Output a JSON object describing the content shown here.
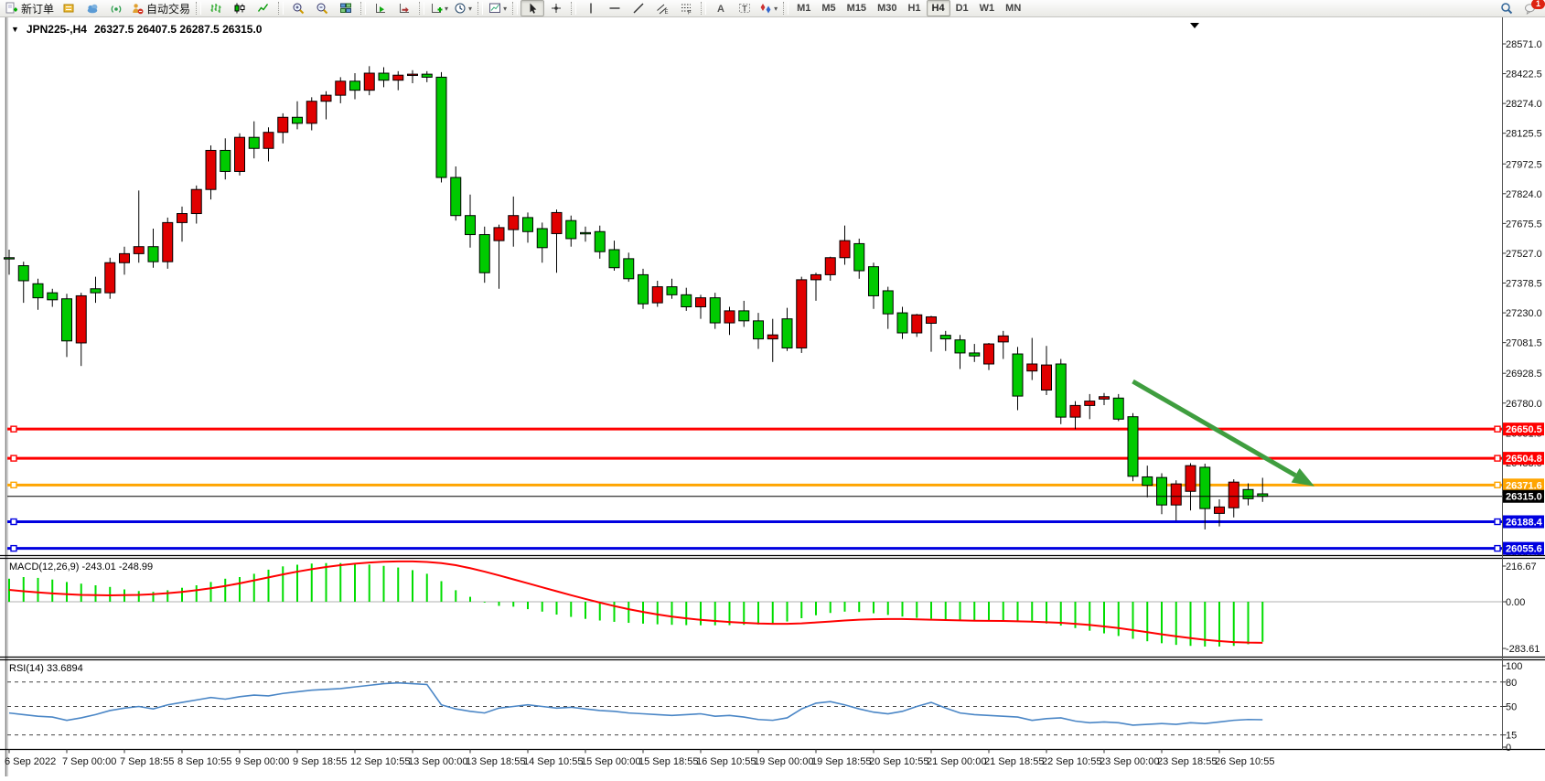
{
  "toolbar": {
    "new_order_label": "新订单",
    "autotrade_label": "自动交易",
    "buttons": [
      {
        "name": "new-order-button",
        "icon": "neworder",
        "label_key": "new_order_label"
      },
      {
        "name": "market-depth-button",
        "icon": "depth"
      },
      {
        "name": "community-button",
        "icon": "community"
      },
      {
        "name": "signals-button",
        "icon": "signals"
      },
      {
        "name": "autotrade-button",
        "icon": "autotrade",
        "label_key": "autotrade_label"
      },
      {
        "sep": true
      },
      {
        "name": "bar-chart-button",
        "icon": "bars"
      },
      {
        "name": "candlestick-chart-button",
        "icon": "candles"
      },
      {
        "name": "line-chart-button",
        "icon": "linechart"
      },
      {
        "sep": true
      },
      {
        "name": "zoom-in-button",
        "icon": "zoomin"
      },
      {
        "name": "zoom-out-button",
        "icon": "zoomout"
      },
      {
        "name": "tile-windows-button",
        "icon": "tile"
      },
      {
        "sep": true
      },
      {
        "name": "auto-scroll-button",
        "icon": "autoscroll"
      },
      {
        "name": "chart-shift-button",
        "icon": "chartshift"
      },
      {
        "sep": true
      },
      {
        "name": "indicators-button",
        "icon": "indicator",
        "dropdown": true
      },
      {
        "name": "periods-button",
        "icon": "clock",
        "dropdown": true
      },
      {
        "sep": true
      },
      {
        "name": "templates-button",
        "icon": "template",
        "dropdown": true
      },
      {
        "sep": true
      },
      {
        "name": "cursor-button",
        "icon": "cursor",
        "pressed": true
      },
      {
        "name": "crosshair-button",
        "icon": "crosshair"
      },
      {
        "sep": true
      },
      {
        "name": "vertical-line-button",
        "icon": "vline"
      },
      {
        "name": "horizontal-line-button",
        "icon": "hline"
      },
      {
        "name": "trendline-button",
        "icon": "trendline"
      },
      {
        "name": "channel-button",
        "icon": "channel"
      },
      {
        "name": "fibonacci-button",
        "icon": "fibo"
      },
      {
        "sep": true
      },
      {
        "name": "text-button",
        "icon": "textA"
      },
      {
        "name": "label-button",
        "icon": "labelT"
      },
      {
        "name": "arrows-button",
        "icon": "arrows",
        "dropdown": true
      },
      {
        "sep": true
      }
    ],
    "timeframes": [
      "M1",
      "M5",
      "M15",
      "M30",
      "H1",
      "H4",
      "D1",
      "W1",
      "MN"
    ],
    "active_timeframe": "H4",
    "notification_count": "1"
  },
  "chart": {
    "title_symbol": "JPN225-,H4",
    "title_values": "26327.5 26407.5 26287.5 26315.0",
    "open": "26327.5",
    "high": "26407.5",
    "low": "26287.5",
    "close": "26315.0"
  },
  "indicators": {
    "macd_label": "MACD(12,26,9)",
    "macd_values": "-243.01 -248.99",
    "rsi_label": "RSI(14)",
    "rsi_value": "33.6894"
  },
  "chart_data": {
    "type": "candlestick",
    "symbol": "JPN225-",
    "period": "H4",
    "ylim": [
      26022,
      28703
    ],
    "bull_color": "#e00000",
    "bear_color": "#00ca00",
    "price_axis_ticks": [
      "28571.0",
      "28422.5",
      "28274.0",
      "28125.5",
      "27972.5",
      "27824.0",
      "27675.5",
      "27527.0",
      "27378.5",
      "27230.0",
      "27081.5",
      "26928.5",
      "26780.0",
      "26631.5",
      "26483.0",
      "26334.5",
      "26186.0",
      "26037.5"
    ],
    "x_labels": [
      "6 Sep 2022",
      "7 Sep 00:00",
      "7 Sep 18:55",
      "8 Sep 10:55",
      "9 Sep 00:00",
      "9 Sep 18:55",
      "12 Sep 10:55",
      "13 Sep 00:00",
      "13 Sep 18:55",
      "14 Sep 10:55",
      "15 Sep 00:00",
      "15 Sep 18:55",
      "16 Sep 10:55",
      "19 Sep 00:00",
      "19 Sep 18:55",
      "20 Sep 10:55",
      "21 Sep 00:00",
      "21 Sep 18:55",
      "22 Sep 10:55",
      "23 Sep 00:00",
      "23 Sep 18:55",
      "26 Sep 10:55"
    ],
    "candles": [
      [
        27505,
        27545,
        27420,
        27500
      ],
      [
        27465,
        27485,
        27280,
        27390
      ],
      [
        27375,
        27400,
        27245,
        27305
      ],
      [
        27330,
        27350,
        27260,
        27295
      ],
      [
        27300,
        27325,
        27010,
        27090
      ],
      [
        27080,
        27330,
        26965,
        27315
      ],
      [
        27350,
        27410,
        27280,
        27330
      ],
      [
        27330,
        27505,
        27300,
        27480
      ],
      [
        27480,
        27560,
        27420,
        27525
      ],
      [
        27525,
        27840,
        27480,
        27560
      ],
      [
        27560,
        27650,
        27455,
        27485
      ],
      [
        27485,
        27705,
        27450,
        27680
      ],
      [
        27680,
        27760,
        27585,
        27725
      ],
      [
        27725,
        27865,
        27675,
        27845
      ],
      [
        27845,
        28065,
        27795,
        28040
      ],
      [
        28040,
        28100,
        27895,
        27935
      ],
      [
        27935,
        28125,
        27915,
        28105
      ],
      [
        28105,
        28185,
        28000,
        28050
      ],
      [
        28050,
        28155,
        27985,
        28130
      ],
      [
        28130,
        28225,
        28075,
        28205
      ],
      [
        28205,
        28285,
        28145,
        28175
      ],
      [
        28175,
        28305,
        28140,
        28285
      ],
      [
        28285,
        28335,
        28195,
        28315
      ],
      [
        28315,
        28405,
        28275,
        28385
      ],
      [
        28385,
        28425,
        28295,
        28340
      ],
      [
        28340,
        28460,
        28315,
        28425
      ],
      [
        28425,
        28455,
        28355,
        28390
      ],
      [
        28390,
        28435,
        28340,
        28415
      ],
      [
        28415,
        28440,
        28375,
        28420
      ],
      [
        28420,
        28435,
        28380,
        28405
      ],
      [
        28405,
        28430,
        27880,
        27905
      ],
      [
        27905,
        27960,
        27690,
        27715
      ],
      [
        27715,
        27820,
        27555,
        27620
      ],
      [
        27620,
        27660,
        27380,
        27430
      ],
      [
        27590,
        27670,
        27350,
        27655
      ],
      [
        27645,
        27810,
        27560,
        27715
      ],
      [
        27705,
        27730,
        27580,
        27635
      ],
      [
        27650,
        27680,
        27480,
        27555
      ],
      [
        27625,
        27745,
        27430,
        27730
      ],
      [
        27690,
        27715,
        27560,
        27600
      ],
      [
        27630,
        27660,
        27585,
        27628
      ],
      [
        27635,
        27665,
        27500,
        27535
      ],
      [
        27545,
        27590,
        27440,
        27455
      ],
      [
        27500,
        27530,
        27385,
        27400
      ],
      [
        27420,
        27450,
        27250,
        27275
      ],
      [
        27280,
        27390,
        27260,
        27360
      ],
      [
        27360,
        27400,
        27300,
        27320
      ],
      [
        27320,
        27355,
        27240,
        27260
      ],
      [
        27260,
        27320,
        27200,
        27305
      ],
      [
        27305,
        27330,
        27150,
        27180
      ],
      [
        27180,
        27260,
        27120,
        27240
      ],
      [
        27240,
        27290,
        27160,
        27190
      ],
      [
        27190,
        27230,
        27050,
        27100
      ],
      [
        27100,
        27200,
        26985,
        27120
      ],
      [
        27200,
        27255,
        27040,
        27055
      ],
      [
        27055,
        27410,
        27030,
        27395
      ],
      [
        27395,
        27430,
        27290,
        27420
      ],
      [
        27420,
        27510,
        27390,
        27505
      ],
      [
        27505,
        27665,
        27470,
        27590
      ],
      [
        27575,
        27600,
        27400,
        27440
      ],
      [
        27460,
        27480,
        27250,
        27315
      ],
      [
        27340,
        27360,
        27150,
        27225
      ],
      [
        27230,
        27260,
        27100,
        27130
      ],
      [
        27130,
        27225,
        27110,
        27220
      ],
      [
        27178,
        27215,
        27036,
        27210
      ],
      [
        27118,
        27140,
        27040,
        27100
      ],
      [
        27095,
        27120,
        26950,
        27030
      ],
      [
        27030,
        27075,
        26985,
        27015
      ],
      [
        26975,
        27080,
        26945,
        27075
      ],
      [
        27085,
        27140,
        27000,
        27115
      ],
      [
        27025,
        27060,
        26745,
        26815
      ],
      [
        26940,
        27105,
        26895,
        26975
      ],
      [
        26845,
        27065,
        26820,
        26970
      ],
      [
        26975,
        27000,
        26675,
        26710
      ],
      [
        26710,
        26790,
        26650,
        26768
      ],
      [
        26768,
        26825,
        26700,
        26790
      ],
      [
        26800,
        26830,
        26770,
        26812
      ],
      [
        26805,
        26825,
        26690,
        26700
      ],
      [
        26712,
        26730,
        26390,
        26415
      ],
      [
        26412,
        26468,
        26310,
        26370
      ],
      [
        26409,
        26430,
        26226,
        26272
      ],
      [
        26272,
        26395,
        26194,
        26377
      ],
      [
        26340,
        26480,
        26245,
        26468
      ],
      [
        26460,
        26478,
        26150,
        26254
      ],
      [
        26230,
        26300,
        26165,
        26262
      ],
      [
        26258,
        26400,
        26210,
        26386
      ],
      [
        26349,
        26380,
        26270,
        26303
      ],
      [
        26327.5,
        26407.5,
        26287.5,
        26315.0
      ]
    ],
    "hlines": [
      {
        "price": "26650.5",
        "value": 26650.5,
        "color": "#ff0000",
        "width": 3
      },
      {
        "price": "26504.8",
        "value": 26504.8,
        "color": "#ff0000",
        "width": 3
      },
      {
        "price": "26371.6",
        "value": 26371.6,
        "color": "#ffa500",
        "width": 3
      },
      {
        "price": "26188.4",
        "value": 26188.4,
        "color": "#0000e0",
        "width": 3
      },
      {
        "price": "26055.6",
        "value": 26055.6,
        "color": "#0000e0",
        "width": 3
      }
    ],
    "current_price": {
      "label": "26315.0",
      "value": 26315.0,
      "color": "#000000"
    },
    "arrow": {
      "from_index": 78,
      "from_price": 26888,
      "to_index": 90.6,
      "to_price": 26365,
      "color": "#3f9e3f"
    },
    "macd": {
      "axis_ticks": [
        "216.67",
        "0.00",
        "-283.61"
      ],
      "axis_values": [
        216.67,
        0,
        -283.61
      ],
      "histogram_color": "#00dd00",
      "signal_color": "#ff0000",
      "histogram": [
        140,
        150,
        145,
        135,
        120,
        110,
        100,
        90,
        75,
        65,
        60,
        70,
        85,
        100,
        120,
        140,
        150,
        170,
        195,
        215,
        225,
        232,
        235,
        235,
        232,
        226,
        218,
        208,
        192,
        170,
        125,
        70,
        30,
        -5,
        -25,
        -30,
        -45,
        -60,
        -78,
        -92,
        -104,
        -114,
        -122,
        -128,
        -133,
        -137,
        -140,
        -142,
        -143,
        -143,
        -142,
        -140,
        -138,
        -132,
        -120,
        -100,
        -82,
        -68,
        -60,
        -62,
        -70,
        -80,
        -90,
        -98,
        -103,
        -107,
        -110,
        -112,
        -113,
        -114,
        -117,
        -123,
        -132,
        -145,
        -160,
        -176,
        -192,
        -208,
        -225,
        -240,
        -252,
        -262,
        -268,
        -272,
        -272,
        -268,
        -258,
        -243
      ],
      "signal": [
        72,
        64,
        57,
        51,
        46,
        42,
        40,
        39,
        40,
        42,
        46,
        52,
        60,
        70,
        82,
        96,
        112,
        130,
        148,
        166,
        183,
        198,
        211,
        222,
        231,
        238,
        243,
        245,
        245,
        242,
        235,
        222,
        204,
        183,
        160,
        136,
        112,
        88,
        64,
        40,
        17,
        -5,
        -26,
        -45,
        -62,
        -77,
        -90,
        -101,
        -110,
        -117,
        -123,
        -128,
        -132,
        -134,
        -134,
        -131,
        -126,
        -120,
        -114,
        -109,
        -106,
        -105,
        -105,
        -107,
        -109,
        -111,
        -113,
        -115,
        -116,
        -117,
        -119,
        -121,
        -124,
        -128,
        -134,
        -141,
        -150,
        -160,
        -172,
        -185,
        -198,
        -210,
        -221,
        -231,
        -239,
        -245,
        -248,
        -249
      ]
    },
    "rsi": {
      "line_color": "#4a86c6",
      "axis_ticks": [
        "100",
        "80",
        "50",
        "15",
        "0"
      ],
      "dashed_levels": [
        80,
        50,
        15
      ],
      "series": [
        42,
        40,
        38,
        37,
        33,
        36,
        40,
        45,
        48,
        50,
        47,
        52,
        55,
        58,
        61,
        59,
        62,
        64,
        63,
        66,
        68,
        70,
        71,
        72,
        74,
        76,
        78,
        79,
        78,
        77,
        52,
        47,
        44,
        42,
        48,
        50,
        52,
        50,
        48,
        49,
        47,
        45,
        44,
        42,
        41,
        40,
        39,
        40,
        41,
        38,
        39,
        37,
        34,
        33,
        36,
        47,
        54,
        56,
        52,
        47,
        43,
        41,
        44,
        50,
        55,
        48,
        42,
        40,
        39,
        38,
        37,
        33,
        35,
        36,
        32,
        30,
        31,
        30,
        27,
        28,
        29,
        28,
        30,
        29,
        31,
        33,
        34,
        33.7
      ]
    }
  }
}
